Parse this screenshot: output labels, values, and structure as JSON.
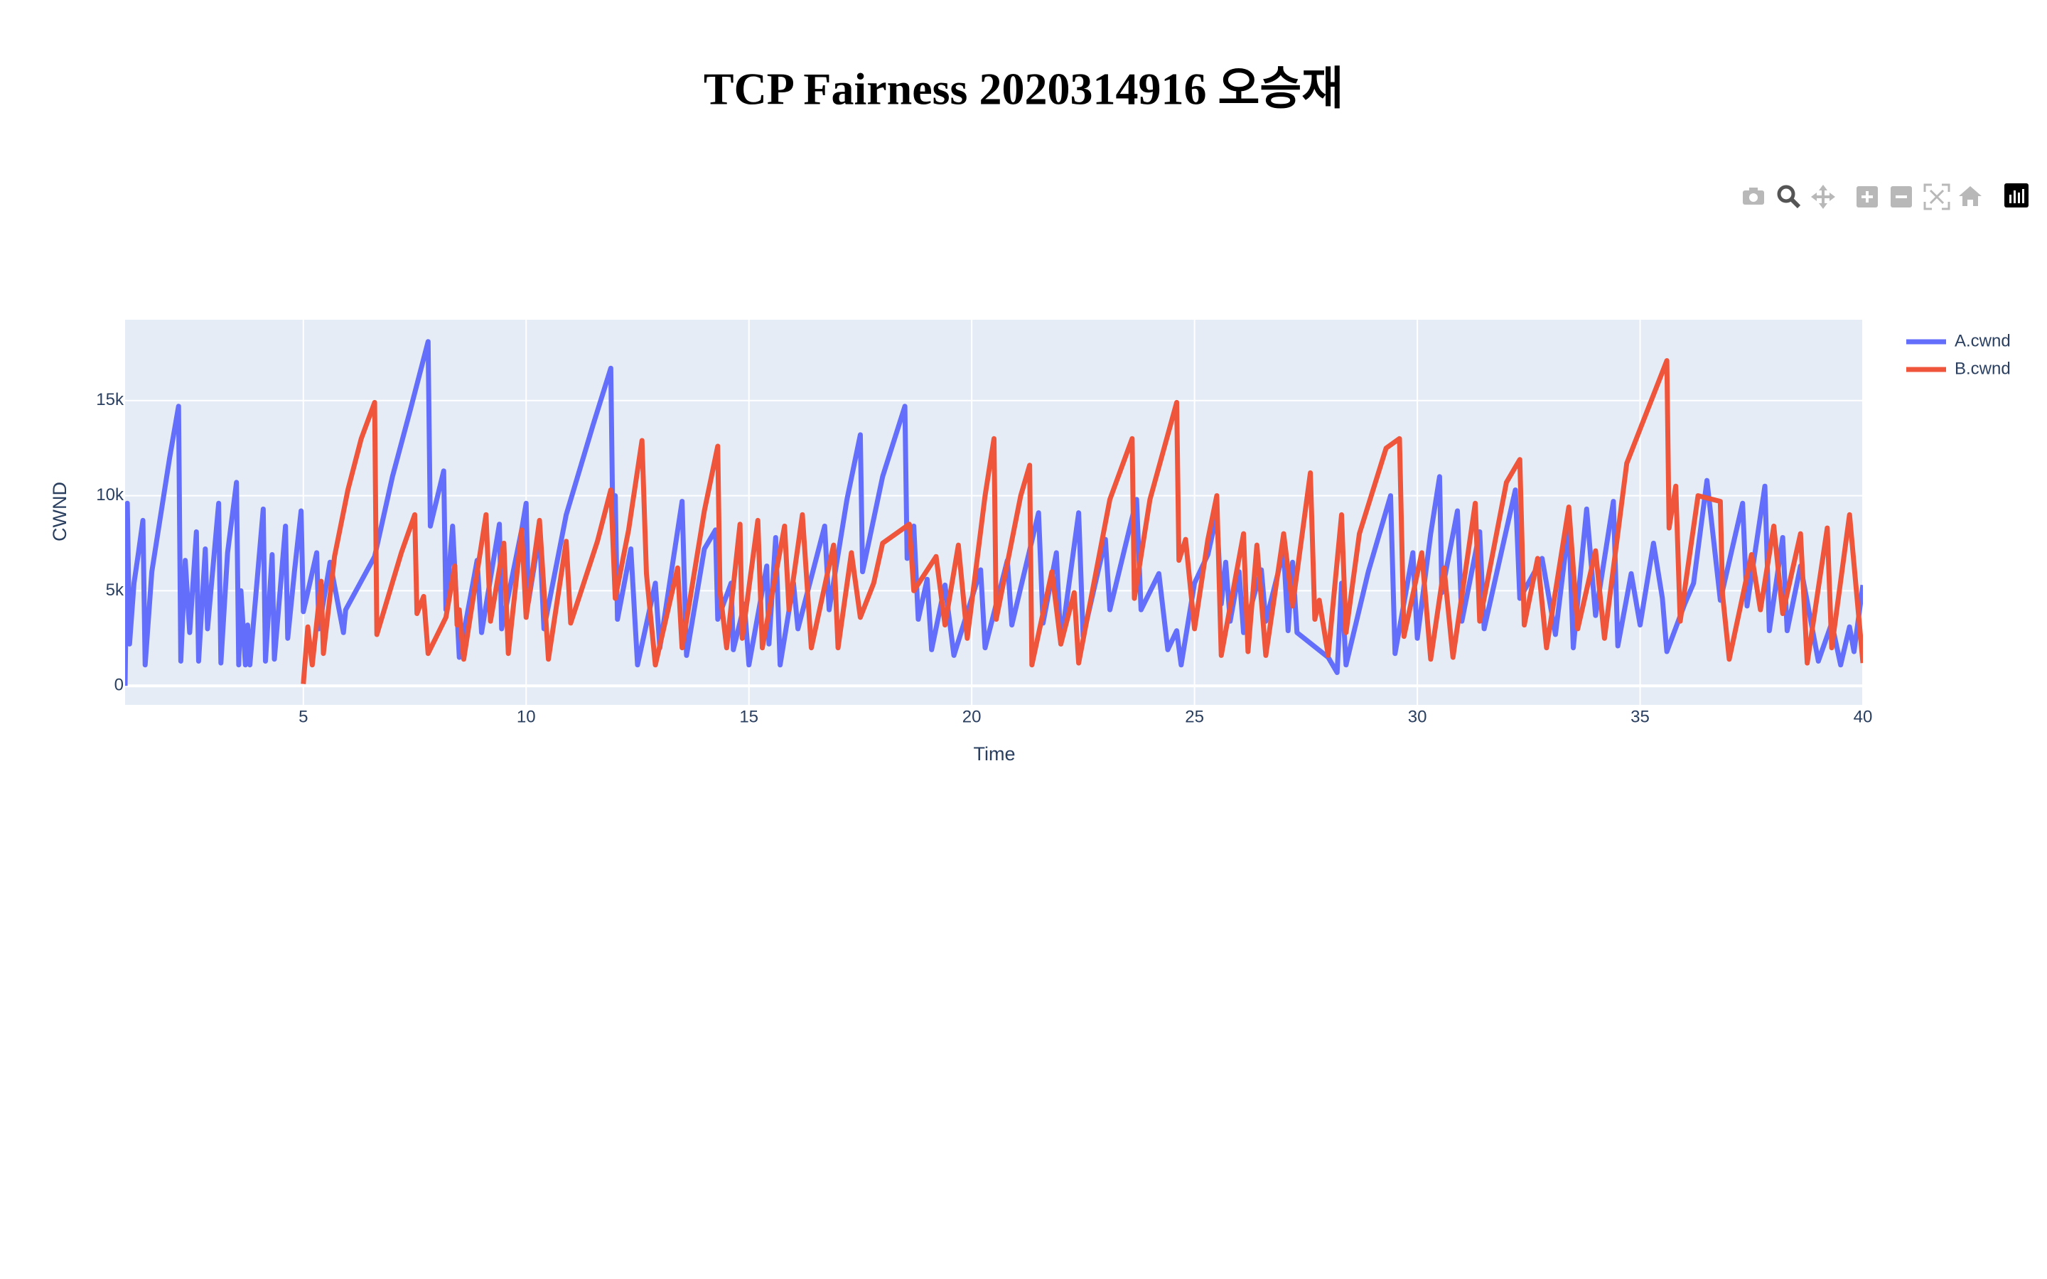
{
  "chart_data": {
    "type": "line",
    "title": "TCP Fairness 2020314916 오승재",
    "x_label": "Time",
    "y_label": "CWND",
    "xlim": [
      1.0,
      40
    ],
    "ylim": [
      -1000,
      19250
    ],
    "xticks": [
      5,
      10,
      15,
      20,
      25,
      30,
      35,
      40
    ],
    "yticks": [
      0,
      {
        "value": 5000,
        "label": "5k"
      },
      {
        "value": 10000,
        "label": "10k"
      },
      {
        "value": 15000,
        "label": "15k"
      }
    ],
    "grid": true,
    "legend": "top-right",
    "series": [
      {
        "name": "A.cwnd",
        "color": "#636efa",
        "x": [
          1.0,
          1.05,
          1.1,
          1.2,
          1.3,
          1.4,
          1.45,
          1.6,
          1.8,
          2.0,
          2.2,
          2.25,
          2.35,
          2.45,
          2.6,
          2.65,
          2.8,
          2.85,
          3.1,
          3.15,
          3.3,
          3.5,
          3.55,
          3.6,
          3.7,
          3.75,
          3.8,
          4.1,
          4.15,
          4.3,
          4.35,
          4.6,
          4.65,
          4.8,
          4.95,
          5.0,
          5.3,
          5.35,
          5.6,
          5.9,
          5.95,
          6.6,
          7.0,
          7.4,
          7.8,
          7.85,
          8.15,
          8.2,
          8.35,
          8.5,
          8.9,
          9.0,
          9.4,
          9.45,
          9.9,
          10.0,
          10.05,
          10.3,
          10.4,
          10.9,
          11.5,
          11.9,
          11.95,
          12.0,
          12.05,
          12.35,
          12.5,
          12.9,
          13.0,
          13.5,
          13.6,
          14.0,
          14.25,
          14.3,
          14.6,
          14.65,
          14.9,
          15.0,
          15.4,
          15.45,
          15.6,
          15.7,
          16.0,
          16.1,
          16.7,
          16.8,
          17.2,
          17.5,
          17.55,
          18.0,
          18.5,
          18.55,
          18.7,
          18.8,
          19.0,
          19.1,
          19.4,
          19.6,
          20.2,
          20.3,
          20.8,
          20.9,
          21.5,
          21.6,
          21.9,
          22.0,
          22.4,
          22.5,
          23.0,
          23.1,
          23.7,
          23.8,
          24.2,
          24.4,
          24.6,
          24.7,
          25.0,
          25.3,
          25.5,
          25.6,
          25.7,
          25.8,
          26.0,
          26.1,
          26.5,
          26.6,
          27.0,
          27.1,
          27.2,
          27.3,
          28.0,
          28.2,
          28.3,
          28.4,
          28.9,
          29.4,
          29.5,
          29.9,
          30.0,
          30.3,
          30.5,
          30.55,
          30.9,
          31.0,
          31.4,
          31.5,
          32.2,
          32.3,
          32.8,
          33.1,
          33.4,
          33.5,
          33.8,
          34.0,
          34.4,
          34.5,
          34.8,
          35.0,
          35.3,
          35.5,
          35.6,
          36.0,
          36.2,
          36.5,
          36.8,
          37.3,
          37.4,
          37.8,
          37.9,
          38.2,
          38.3,
          38.6,
          39.0,
          39.3,
          39.5,
          39.7,
          39.8,
          40.0
        ],
        "values": [
          0,
          9600,
          2200,
          5400,
          7000,
          8700,
          1100,
          6000,
          9000,
          12000,
          14700,
          1300,
          6600,
          2800,
          8100,
          1300,
          7200,
          3000,
          9600,
          1200,
          7000,
          10700,
          1100,
          5000,
          1100,
          3200,
          1100,
          9300,
          1300,
          6900,
          1400,
          8400,
          2500,
          6000,
          9200,
          3900,
          7000,
          3000,
          6500,
          2800,
          4000,
          6800,
          11000,
          14500,
          18100,
          8400,
          11300,
          4000,
          8400,
          1500,
          6600,
          2800,
          8500,
          3000,
          8200,
          9600,
          4400,
          8000,
          3000,
          9000,
          13700,
          16700,
          7800,
          10000,
          3500,
          7200,
          1100,
          5400,
          2000,
          9700,
          1600,
          7200,
          8200,
          3500,
          5400,
          1900,
          4300,
          1100,
          6300,
          2200,
          7800,
          1100,
          5400,
          3000,
          8400,
          4000,
          9800,
          13200,
          6000,
          11000,
          14700,
          6700,
          8400,
          3500,
          5600,
          1900,
          5300,
          1600,
          6100,
          2000,
          6600,
          3200,
          9100,
          3300,
          7000,
          2200,
          9100,
          2600,
          7700,
          4000,
          9800,
          4000,
          5900,
          1900,
          2900,
          1100,
          5400,
          6900,
          9000,
          4300,
          6500,
          3400,
          6000,
          2800,
          6100,
          3400,
          7100,
          2900,
          6500,
          2800,
          1500,
          700,
          5400,
          1100,
          6000,
          10000,
          1700,
          7000,
          2500,
          8000,
          11000,
          4900,
          9200,
          3400,
          8100,
          3000,
          10300,
          4600,
          6700,
          2700,
          8500,
          2000,
          9300,
          3700,
          9700,
          2100,
          5900,
          3200,
          7500,
          4600,
          1800,
          4300,
          5400,
          10800,
          4500,
          9600,
          4200,
          10500,
          2900,
          7800,
          2900,
          6300,
          1300,
          3300,
          1100,
          3100,
          1800,
          5300
        ]
      },
      {
        "name": "B.cwnd",
        "color": "#ef553b",
        "x": [
          5.0,
          5.1,
          5.2,
          5.4,
          5.45,
          5.7,
          6.0,
          6.3,
          6.6,
          6.65,
          7.2,
          7.5,
          7.55,
          7.7,
          7.8,
          8.2,
          8.4,
          8.45,
          8.5,
          8.6,
          9.1,
          9.2,
          9.5,
          9.6,
          9.9,
          10.0,
          10.3,
          10.5,
          10.9,
          11.0,
          11.6,
          11.9,
          12.0,
          12.3,
          12.6,
          12.7,
          12.9,
          13.4,
          13.5,
          14.0,
          14.3,
          14.35,
          14.5,
          14.8,
          14.85,
          15.2,
          15.3,
          15.8,
          15.9,
          16.2,
          16.4,
          16.9,
          17.0,
          17.3,
          17.5,
          17.8,
          18.0,
          18.6,
          18.7,
          19.2,
          19.4,
          19.7,
          19.9,
          20.3,
          20.5,
          20.55,
          21.1,
          21.3,
          21.35,
          21.8,
          22.0,
          22.3,
          22.4,
          23.1,
          23.6,
          23.65,
          24.0,
          24.6,
          24.65,
          24.8,
          25.0,
          25.3,
          25.5,
          25.6,
          26.1,
          26.2,
          26.4,
          26.6,
          27.0,
          27.2,
          27.6,
          27.7,
          27.8,
          28.0,
          28.3,
          28.4,
          28.7,
          29.3,
          29.6,
          29.7,
          30.1,
          30.3,
          30.6,
          30.8,
          31.3,
          31.4,
          32.0,
          32.3,
          32.4,
          32.7,
          32.9,
          33.4,
          33.6,
          34.0,
          34.2,
          34.7,
          35.0,
          35.6,
          35.65,
          35.8,
          35.9,
          36.3,
          36.8,
          36.85,
          37.0,
          37.5,
          37.7,
          38.0,
          38.2,
          38.6,
          38.75,
          39.2,
          39.3,
          39.7,
          40.0
        ],
        "values": [
          100,
          3100,
          1100,
          5500,
          1700,
          6800,
          10300,
          13000,
          14900,
          2700,
          7000,
          9000,
          3800,
          4700,
          1700,
          3600,
          6300,
          3200,
          4000,
          1400,
          9000,
          3400,
          7500,
          1700,
          8200,
          3600,
          8700,
          1400,
          7600,
          3300,
          7600,
          10300,
          4600,
          8200,
          12900,
          5900,
          1100,
          6200,
          2000,
          9200,
          12600,
          5000,
          2000,
          8500,
          2500,
          8700,
          2000,
          8400,
          4000,
          9000,
          2000,
          7400,
          2000,
          7000,
          3600,
          5400,
          7500,
          8500,
          5000,
          6800,
          3200,
          7400,
          2500,
          10000,
          13000,
          3500,
          10000,
          11600,
          1100,
          6000,
          2200,
          4900,
          1200,
          9800,
          13000,
          4600,
          9800,
          14900,
          6600,
          7700,
          3000,
          7700,
          10000,
          1600,
          8000,
          1800,
          7400,
          1600,
          8000,
          4200,
          11200,
          3500,
          4500,
          1600,
          9000,
          2800,
          8000,
          12500,
          13000,
          2600,
          7000,
          1400,
          6200,
          1500,
          9600,
          3400,
          10700,
          11900,
          3200,
          6700,
          2000,
          9400,
          3000,
          7100,
          2500,
          11700,
          13500,
          17100,
          8300,
          10500,
          3400,
          10000,
          9700,
          4800,
          1400,
          6900,
          4000,
          8400,
          3800,
          8000,
          1200,
          8300,
          2000,
          9000,
          1200
        ]
      }
    ]
  }
}
